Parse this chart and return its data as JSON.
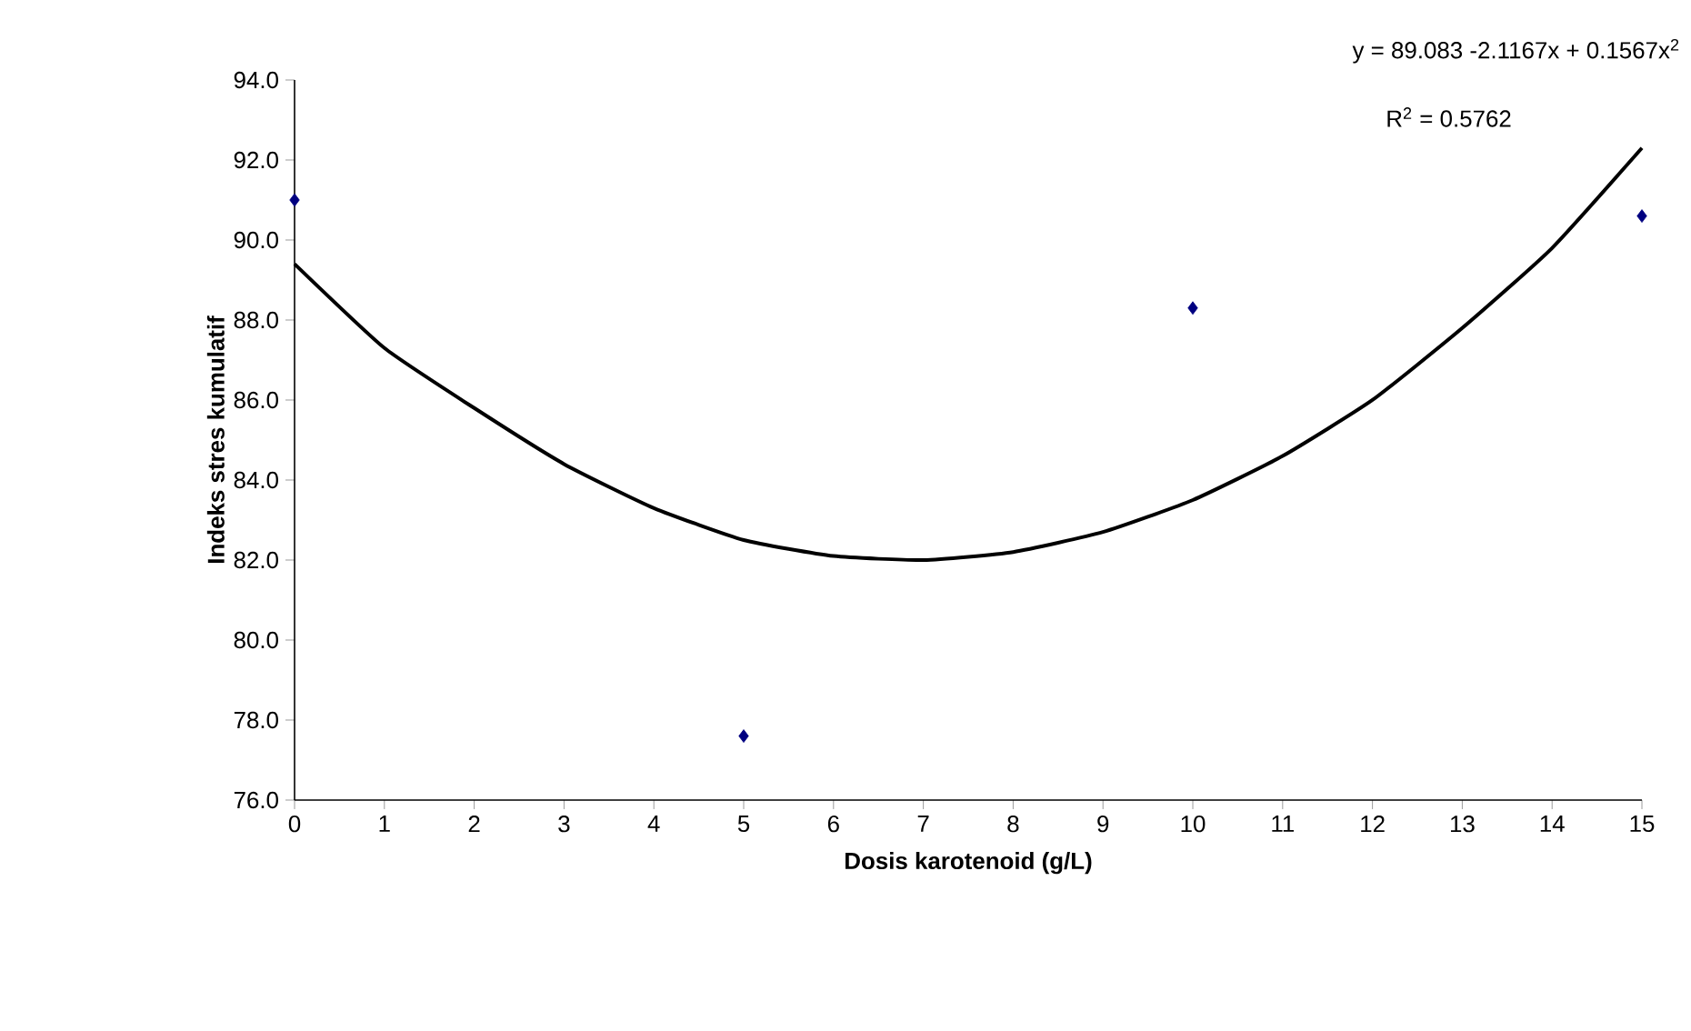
{
  "chart_data": {
    "type": "scatter",
    "xlabel": "Dosis karotenoid (g/L)",
    "ylabel": "Indeks stres kumulatif",
    "xlim": [
      0,
      15
    ],
    "ylim": [
      76,
      94
    ],
    "xticks": [
      0,
      1,
      2,
      3,
      4,
      5,
      6,
      7,
      8,
      9,
      10,
      11,
      12,
      13,
      14,
      15
    ],
    "yticks": [
      {
        "value": 76,
        "label": "76.0"
      },
      {
        "value": 78,
        "label": "78.0"
      },
      {
        "value": 80,
        "label": "80.0"
      },
      {
        "value": 82,
        "label": "82.0"
      },
      {
        "value": 84,
        "label": "84.0"
      },
      {
        "value": 86,
        "label": "86.0"
      },
      {
        "value": 88,
        "label": "88.0"
      },
      {
        "value": 90,
        "label": "90.0"
      },
      {
        "value": 92,
        "label": "92.0"
      },
      {
        "value": 94,
        "label": "94.0"
      }
    ],
    "grid": false,
    "series": [
      {
        "marker": "diamond",
        "color": "#000080",
        "x": [
          0,
          5,
          10,
          15
        ],
        "values": [
          91.0,
          77.6,
          88.3,
          90.6
        ]
      },
      {
        "type": "line",
        "marker": "none",
        "color": "#000000",
        "x": [
          0,
          1,
          2,
          3,
          4,
          5,
          6,
          7,
          8,
          9,
          10,
          11,
          12,
          13,
          14,
          15
        ],
        "values": [
          89.4,
          87.3,
          85.8,
          84.4,
          83.3,
          82.5,
          82.1,
          82.0,
          82.2,
          82.7,
          83.5,
          84.6,
          86.0,
          87.8,
          89.8,
          92.3
        ]
      }
    ],
    "annotations": [
      "y = 89.083 -2.1167x + 0.1567x$^{2}$",
      "R$^{2}$ = 0.5762"
    ]
  }
}
